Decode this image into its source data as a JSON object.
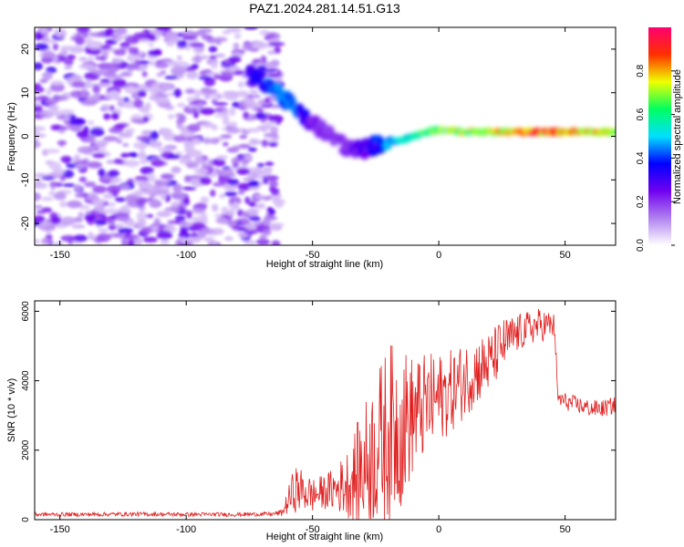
{
  "title": "PAZ1.2024.281.14.51.G13",
  "colors": {
    "snr_line": "#e02020",
    "axis": "#000000",
    "background": "#ffffff"
  },
  "chart_data": [
    {
      "type": "heatmap",
      "xlabel": "Height of straight line (km)",
      "ylabel": "Frequency (Hz)",
      "xlim": [
        -160,
        70
      ],
      "ylim": [
        -25,
        25
      ],
      "xticks": [
        -150,
        -100,
        -50,
        0,
        50
      ],
      "xtick_labels": [
        "-150",
        "-100",
        "-50",
        "0",
        "50"
      ],
      "yticks": [
        -20,
        -10,
        0,
        10,
        20
      ],
      "ytick_labels": [
        "-20",
        "-10",
        "0",
        "10",
        "20"
      ],
      "colorbar": {
        "label": "Normalized spectral amplitude",
        "range": [
          0.0,
          1.0
        ],
        "ticks": [
          0.0,
          0.2,
          0.4,
          0.6,
          0.8
        ],
        "tick_labels": [
          "0.0",
          "0.2",
          "0.4",
          "0.6",
          "0.8"
        ],
        "colormap": [
          "#ffffff",
          "#b080f0",
          "#7000f0",
          "#0000ff",
          "#00e0ff",
          "#00ff60",
          "#f0ff00",
          "#ff3000",
          "#ff0070"
        ]
      },
      "ridge": {
        "x": [
          -75,
          -70,
          -65,
          -62,
          -58,
          -55,
          -50,
          -45,
          -40,
          -35,
          -30,
          -25,
          -20,
          -15,
          -10,
          -5,
          0,
          10,
          20,
          30,
          40,
          50,
          60,
          70
        ],
        "freq": [
          14,
          13,
          11,
          9,
          7,
          5,
          3,
          1,
          -1,
          -3,
          -3,
          -2,
          -1,
          -1,
          0,
          1,
          1.5,
          1,
          1,
          1,
          1,
          1,
          1,
          1
        ],
        "amplitude": [
          0.3,
          0.35,
          0.4,
          0.45,
          0.45,
          0.35,
          0.25,
          0.2,
          0.2,
          0.25,
          0.3,
          0.35,
          0.45,
          0.5,
          0.55,
          0.6,
          0.65,
          0.7,
          0.75,
          0.8,
          0.85,
          0.85,
          0.8,
          0.75
        ]
      },
      "noise_region": {
        "x_from": -160,
        "x_to": -63,
        "amplitude": [
          0.0,
          0.25
        ]
      }
    },
    {
      "type": "line",
      "xlabel": "Height of straight line (km)",
      "ylabel": "SNR (10 * v/v)",
      "xlim": [
        -160,
        70
      ],
      "ylim": [
        0,
        6300
      ],
      "xticks": [
        -150,
        -100,
        -50,
        0,
        50
      ],
      "xtick_labels": [
        "-150",
        "-100",
        "-50",
        "0",
        "50"
      ],
      "yticks": [
        0,
        2000,
        4000,
        6000
      ],
      "ytick_labels": [
        "0",
        "2000",
        "4000",
        "6000"
      ],
      "series": [
        {
          "x": [
            -160,
            -140,
            -120,
            -100,
            -80,
            -66,
            -62,
            -57,
            -53,
            -50,
            -45,
            -40,
            -35,
            -30,
            -25,
            -20,
            -15,
            -10,
            -5,
            0,
            5,
            10,
            15,
            20,
            25,
            30,
            35,
            40,
            45,
            46,
            47,
            50,
            55,
            60,
            65,
            70
          ],
          "y": [
            150,
            150,
            160,
            150,
            150,
            160,
            200,
            900,
            800,
            700,
            800,
            900,
            1100,
            1500,
            2000,
            2500,
            2700,
            3000,
            3300,
            3500,
            3700,
            4000,
            4300,
            4500,
            5000,
            5300,
            5500,
            5600,
            5600,
            5500,
            3500,
            3400,
            3300,
            3200,
            3200,
            3300
          ],
          "spread": [
            60,
            60,
            60,
            60,
            60,
            60,
            100,
            700,
            600,
            500,
            500,
            700,
            1100,
            1800,
            2200,
            2600,
            2400,
            1700,
            1500,
            1300,
            1200,
            1100,
            1000,
            900,
            800,
            600,
            500,
            500,
            400,
            400,
            300,
            250,
            250,
            250,
            250,
            250
          ]
        }
      ]
    }
  ]
}
